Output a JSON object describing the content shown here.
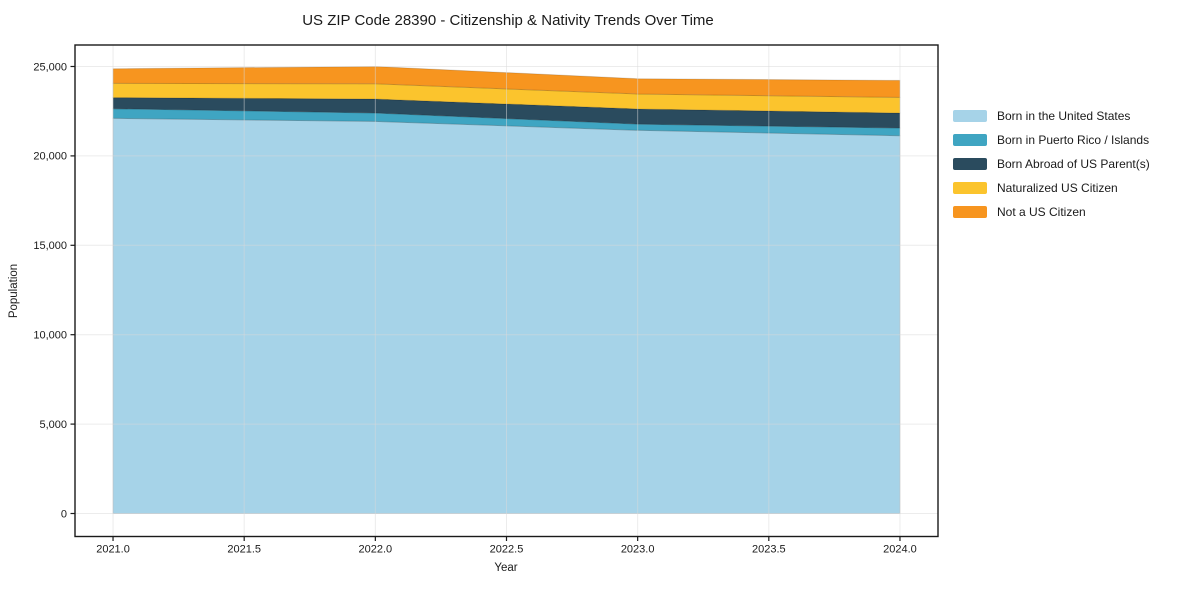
{
  "chart_data": {
    "type": "area",
    "stacked": true,
    "title": "US ZIP Code 28390 - Citizenship & Nativity Trends Over Time",
    "xlabel": "Year",
    "ylabel": "Population",
    "x": [
      2021,
      2022,
      2023,
      2024
    ],
    "series": [
      {
        "name": "Born in the United States",
        "color": "#a6d3e8",
        "values": [
          22100,
          21930,
          21430,
          21130
        ]
      },
      {
        "name": "Born in Puerto Rico / Islands",
        "color": "#3fa5c2",
        "values": [
          540,
          470,
          350,
          430
        ]
      },
      {
        "name": "Born Abroad of US Parent(s)",
        "color": "#2a4b5e",
        "values": [
          620,
          780,
          840,
          840
        ]
      },
      {
        "name": "Naturalized US Citizen",
        "color": "#fbc42d",
        "values": [
          800,
          850,
          840,
          870
        ]
      },
      {
        "name": "Not a US Citizen",
        "color": "#f7951f",
        "values": [
          810,
          970,
          860,
          950
        ]
      }
    ],
    "x_tick_labels": [
      "2021.0",
      "2021.5",
      "2022.0",
      "2022.5",
      "2023.0",
      "2023.5",
      "2024.0"
    ],
    "x_tick_values": [
      2021,
      2021.5,
      2022,
      2022.5,
      2023,
      2023.5,
      2024
    ],
    "y_tick_labels": [
      "0",
      "5,000",
      "10,000",
      "15,000",
      "20,000",
      "25,000"
    ],
    "y_tick_values": [
      0,
      5000,
      10000,
      15000,
      20000,
      25000
    ],
    "xlim": [
      2020.855,
      2024.145
    ],
    "ylim": [
      -1286,
      26202
    ],
    "grid": true,
    "legend_position": "right",
    "colors": {
      "spine": "#1a1a1a",
      "gridline": "#d9d9d9",
      "background": "#ffffff"
    }
  }
}
